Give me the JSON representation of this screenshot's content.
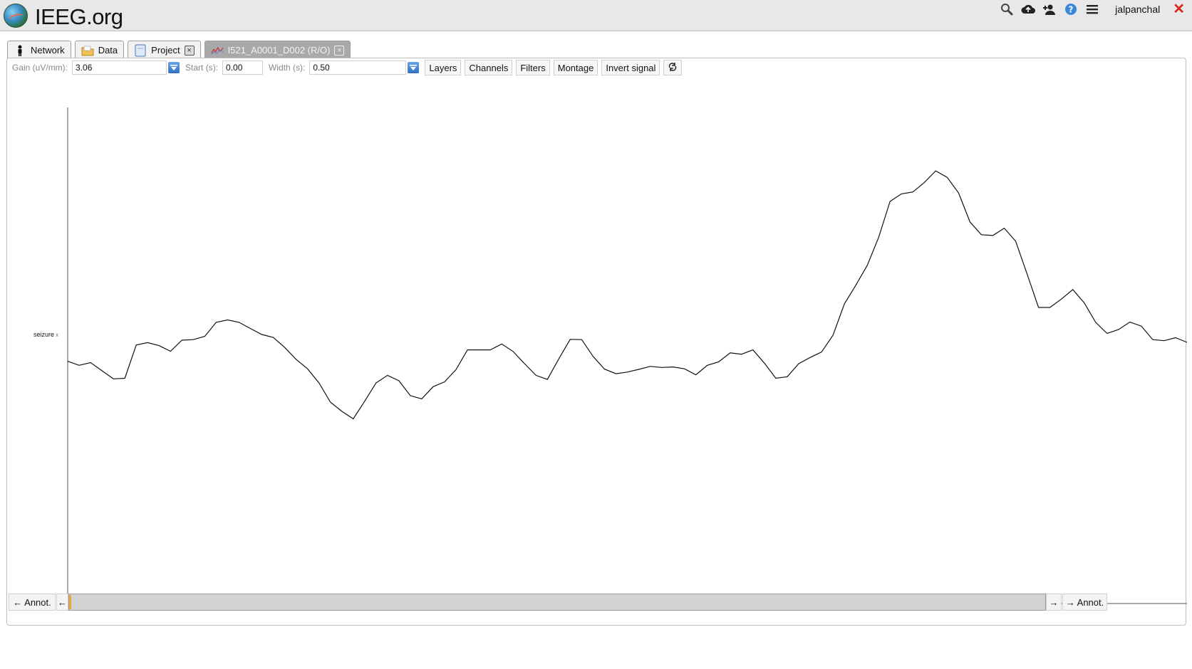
{
  "app": {
    "title": "IEEG.org"
  },
  "header": {
    "icons": [
      "search-icon",
      "cloud-upload-icon",
      "add-user-icon",
      "help-icon",
      "menu-icon"
    ],
    "username": "jalpanchal",
    "close_label": "✕"
  },
  "tabs": [
    {
      "label": "Network",
      "icon": "person-icon",
      "closable": false,
      "active": false
    },
    {
      "label": "Data",
      "icon": "folder-icon",
      "closable": false,
      "active": false
    },
    {
      "label": "Project",
      "icon": "document-icon",
      "closable": true,
      "active": false
    },
    {
      "label": "I521_A0001_D002 (R/O)",
      "icon": "signal-icon",
      "closable": true,
      "active": true
    }
  ],
  "toolbar": {
    "gain_label": "Gain (uV/mm):",
    "gain_value": "3.06",
    "start_label": "Start (s):",
    "start_value": "0.00",
    "width_label": "Width (s):",
    "width_value": "0.50",
    "layers_label": "Layers",
    "channels_label": "Channels",
    "filters_label": "Filters",
    "montage_label": "Montage",
    "invert_label": "Invert signal",
    "refresh_icon": "refresh-icon"
  },
  "channel": {
    "name": "seizure",
    "remove_label": "x",
    "signal": [
      -2.0,
      -3.5,
      -2.5,
      -5.5,
      -8.5,
      -8.3,
      4.0,
      4.9,
      3.8,
      1.7,
      5.8,
      6.0,
      7.2,
      12.4,
      13.3,
      12.4,
      10.1,
      7.9,
      6.8,
      3.1,
      -1.3,
      -4.8,
      -10.0,
      -17.1,
      -20.5,
      -23.3,
      -16.8,
      -10.0,
      -7.2,
      -9.2,
      -14.7,
      -15.9,
      -11.4,
      -9.6,
      -5.1,
      2.2,
      2.2,
      2.2,
      4.4,
      1.6,
      -2.9,
      -7.2,
      -8.7,
      -1.1,
      6.1,
      6.0,
      -0.2,
      -4.9,
      -6.6,
      -6.0,
      -5.0,
      -3.9,
      -4.3,
      -4.1,
      -4.8,
      -7.0,
      -3.5,
      -2.2,
      1.1,
      0.6,
      2.2,
      -2.7,
      -8.3,
      -7.7,
      -2.9,
      -0.6,
      1.4,
      7.6,
      19.2,
      26.1,
      33.4,
      43.8,
      57.1,
      59.9,
      60.6,
      64.1,
      68.4,
      66.0,
      60.2,
      49.5,
      44.8,
      44.5,
      47.2,
      42.4,
      30.2,
      17.9,
      17.9,
      21.0,
      24.5,
      19.6,
      12.4,
      8.3,
      9.7,
      12.5,
      11.0,
      6.0,
      5.6,
      6.7,
      5.0
    ]
  },
  "navigation": {
    "prev_annot_label": "← Annot.",
    "prev_label": "←",
    "next_label": "→",
    "next_annot_label": "→ Annot.",
    "scroll_position": 0.0
  },
  "colors": {
    "active_tab": "#a9a9a9",
    "signal": "#111111",
    "scroll_thumb": "#e9a640",
    "close": "#d9261c",
    "dropdown": "#2f6fc0"
  }
}
